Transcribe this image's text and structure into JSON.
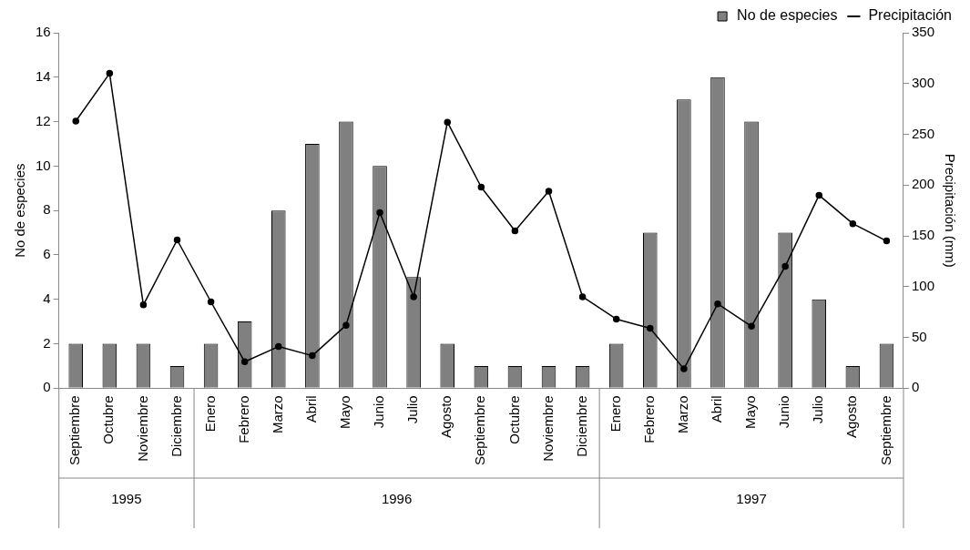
{
  "chart_data": {
    "type": "bar",
    "ylabel": "No de especies",
    "y2label": "Precipitación (mm)",
    "categories": [
      "Septiembre",
      "Octubre",
      "Noviembre",
      "Diciembre",
      "Enero",
      "Febrero",
      "Marzo",
      "Abril",
      "Mayo",
      "Junio",
      "Julio",
      "Agosto",
      "Septiembre",
      "Octubre",
      "Noviembre",
      "Diciembre",
      "Enero",
      "Febrero",
      "Marzo",
      "Abril",
      "Mayo",
      "Junio",
      "Julio",
      "Agosto",
      "Septiembre"
    ],
    "series": [
      {
        "name": "No de especies",
        "color": "#808080",
        "values": [
          2,
          2,
          2,
          1,
          2,
          3,
          8,
          11,
          12,
          10,
          5,
          2,
          1,
          1,
          1,
          1,
          2,
          7,
          13,
          14,
          12,
          7,
          4,
          1,
          2
        ]
      },
      {
        "name": "Precipitación",
        "type": "line",
        "axis": "y2",
        "color": "#000000",
        "values": [
          263,
          310,
          82,
          146,
          85,
          26,
          41,
          32,
          62,
          173,
          90,
          262,
          198,
          155,
          194,
          90,
          68,
          59,
          19,
          83,
          61,
          120,
          190,
          162,
          145
        ]
      }
    ],
    "ylim": [
      0,
      16
    ],
    "yticks": [
      0,
      2,
      4,
      6,
      8,
      10,
      12,
      14,
      16
    ],
    "y2lim": [
      0,
      350
    ],
    "y2ticks": [
      0,
      50,
      100,
      150,
      200,
      250,
      300,
      350
    ],
    "annotations": [
      "1995",
      "1996",
      "1997"
    ],
    "grid": false,
    "legend": "top right",
    "marker": "circle",
    "line_style": "solid"
  }
}
